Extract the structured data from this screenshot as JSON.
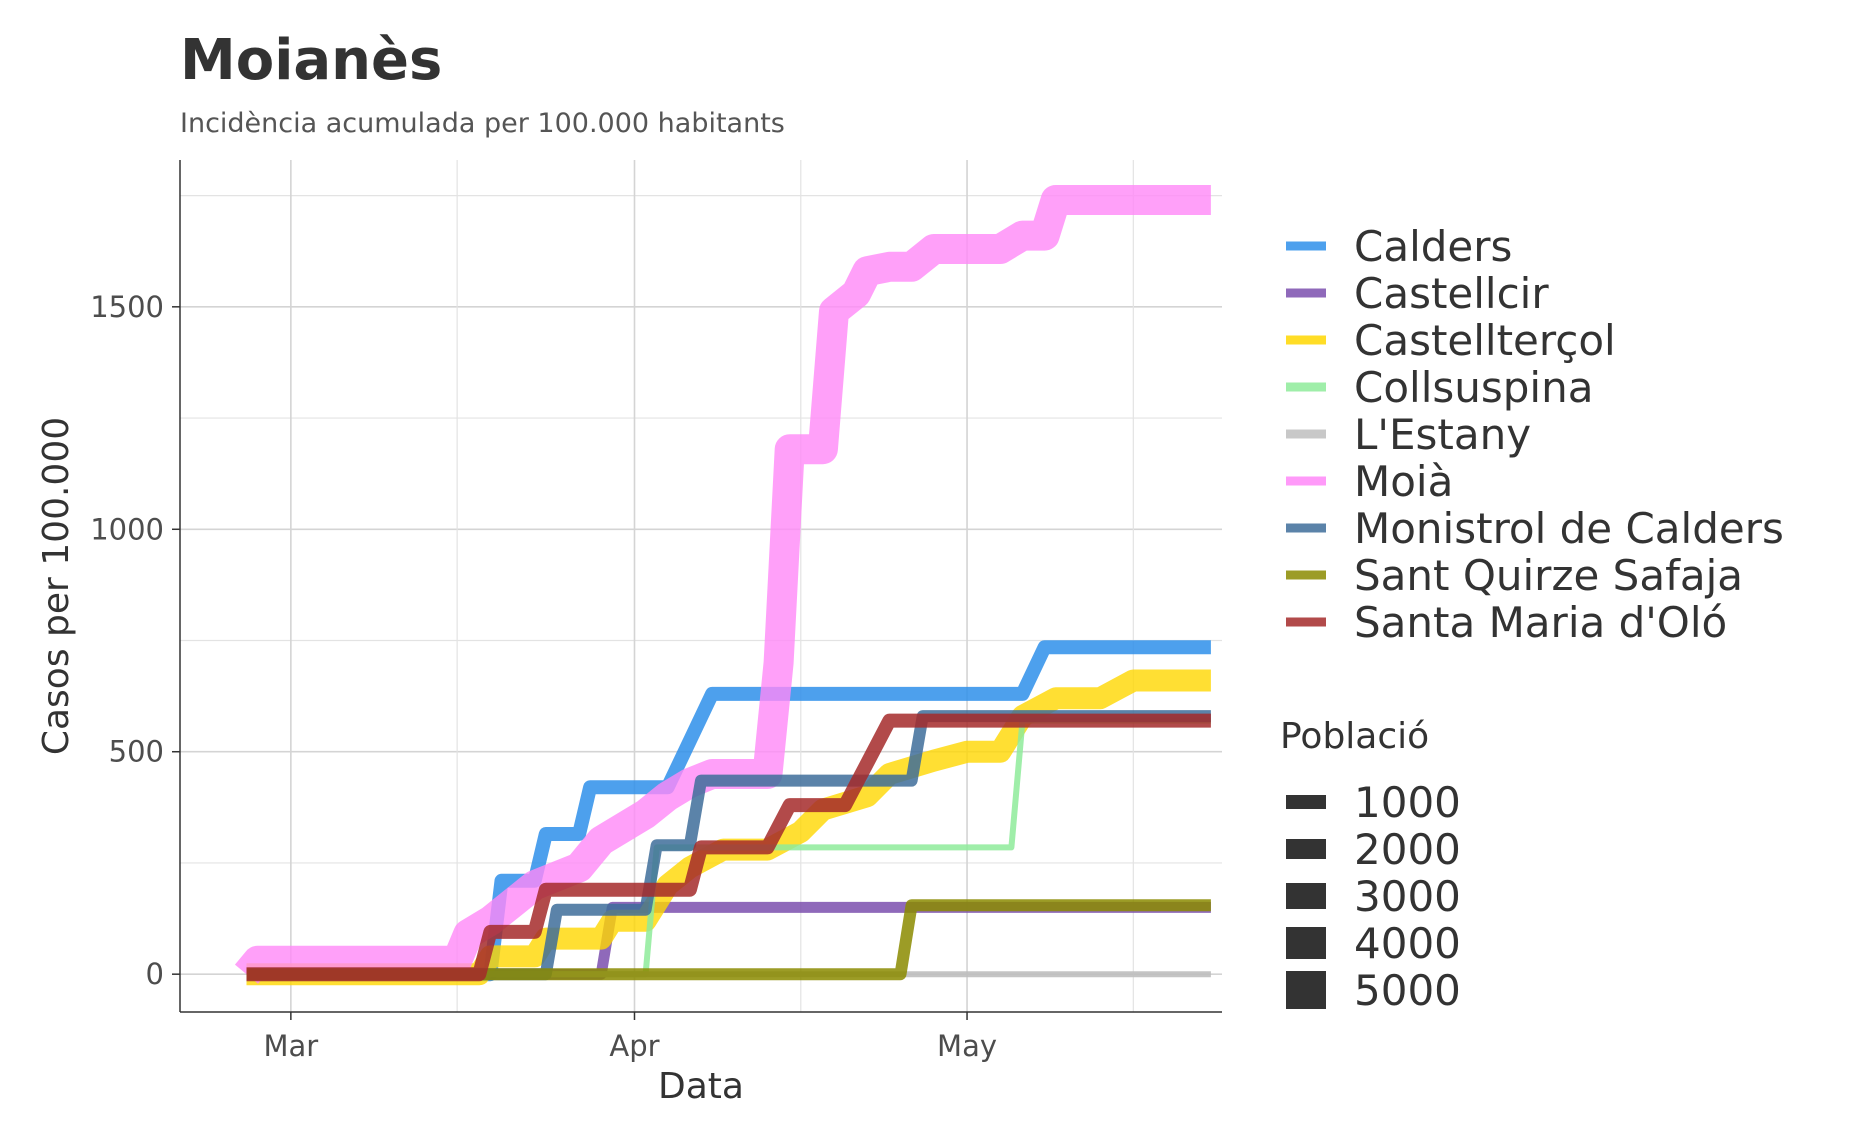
{
  "chart_data": {
    "type": "line",
    "title": "Moianès",
    "subtitle": "Incidència acumulada per 100.000 habitants",
    "xlabel": "Data",
    "ylabel": "Casos per 100.000",
    "x_ticks": [
      {
        "label": "Mar",
        "date": "2020-03-01"
      },
      {
        "label": "Apr",
        "date": "2020-04-01"
      },
      {
        "label": "May",
        "date": "2020-05-01"
      }
    ],
    "x_grid_dates": [
      "2020-03-16",
      "2020-04-16",
      "2020-05-16"
    ],
    "xlim": [
      "2020-02-20",
      "2020-05-24"
    ],
    "y_ticks": [
      0,
      500,
      1000,
      1500
    ],
    "y_grid_minor": [
      250,
      750,
      1250,
      1750
    ],
    "ylim": [
      -85,
      1830
    ],
    "grid": true,
    "legend_position": "right",
    "size_legend": {
      "title": "Població",
      "entries": [
        "1000",
        "2000",
        "3000",
        "4000",
        "5000"
      ]
    },
    "series": [
      {
        "name": "Calders",
        "color": "#2E8FEA",
        "population": 1000,
        "stroke_width": 14,
        "opacity": 0.85,
        "points": [
          [
            "2020-02-26",
            0
          ],
          [
            "2020-03-19",
            0
          ],
          [
            "2020-03-20",
            210
          ],
          [
            "2020-03-23",
            210
          ],
          [
            "2020-03-24",
            315
          ],
          [
            "2020-03-27",
            315
          ],
          [
            "2020-03-28",
            420
          ],
          [
            "2020-04-04",
            420
          ],
          [
            "2020-04-06",
            525
          ],
          [
            "2020-04-08",
            630
          ],
          [
            "2020-05-06",
            630
          ],
          [
            "2020-05-08",
            735
          ],
          [
            "2020-05-23",
            735
          ]
        ]
      },
      {
        "name": "Castellcir",
        "color": "#7B4FAE",
        "population": 700,
        "stroke_width": 11,
        "opacity": 0.85,
        "points": [
          [
            "2020-02-26",
            0
          ],
          [
            "2020-03-29",
            0
          ],
          [
            "2020-03-30",
            150
          ],
          [
            "2020-05-23",
            150
          ]
        ]
      },
      {
        "name": "Castellterçol",
        "color": "#FFD700",
        "population": 2400,
        "stroke_width": 22,
        "opacity": 0.8,
        "points": [
          [
            "2020-02-26",
            0
          ],
          [
            "2020-03-18",
            0
          ],
          [
            "2020-03-19",
            40
          ],
          [
            "2020-03-23",
            40
          ],
          [
            "2020-03-24",
            80
          ],
          [
            "2020-03-29",
            80
          ],
          [
            "2020-03-30",
            120
          ],
          [
            "2020-04-02",
            120
          ],
          [
            "2020-04-03",
            160
          ],
          [
            "2020-04-04",
            200
          ],
          [
            "2020-04-06",
            240
          ],
          [
            "2020-04-09",
            280
          ],
          [
            "2020-04-13",
            280
          ],
          [
            "2020-04-16",
            320
          ],
          [
            "2020-04-18",
            370
          ],
          [
            "2020-04-22",
            400
          ],
          [
            "2020-04-24",
            450
          ],
          [
            "2020-04-28",
            480
          ],
          [
            "2020-05-01",
            500
          ],
          [
            "2020-05-04",
            500
          ],
          [
            "2020-05-06",
            580
          ],
          [
            "2020-05-09",
            620
          ],
          [
            "2020-05-13",
            620
          ],
          [
            "2020-05-16",
            660
          ],
          [
            "2020-05-23",
            660
          ]
        ]
      },
      {
        "name": "Collsuspina",
        "color": "#8EEB9A",
        "population": 400,
        "stroke_width": 6,
        "opacity": 0.85,
        "points": [
          [
            "2020-02-26",
            0
          ],
          [
            "2020-04-02",
            0
          ],
          [
            "2020-04-03",
            285
          ],
          [
            "2020-05-05",
            285
          ],
          [
            "2020-05-06",
            570
          ],
          [
            "2020-05-23",
            570
          ]
        ]
      },
      {
        "name": "L'Estany",
        "color": "#BEBEBE",
        "population": 400,
        "stroke_width": 6,
        "opacity": 0.9,
        "points": [
          [
            "2020-02-26",
            0
          ],
          [
            "2020-05-23",
            0
          ]
        ]
      },
      {
        "name": "Moià",
        "color": "#FF88F8",
        "population": 6000,
        "stroke_width": 30,
        "opacity": 0.8,
        "points": [
          [
            "2020-02-26",
            0
          ],
          [
            "2020-02-27",
            30
          ],
          [
            "2020-03-16",
            30
          ],
          [
            "2020-03-17",
            90
          ],
          [
            "2020-03-19",
            120
          ],
          [
            "2020-03-21",
            160
          ],
          [
            "2020-03-23",
            200
          ],
          [
            "2020-03-27",
            240
          ],
          [
            "2020-03-29",
            300
          ],
          [
            "2020-03-31",
            330
          ],
          [
            "2020-04-02",
            360
          ],
          [
            "2020-04-04",
            400
          ],
          [
            "2020-04-06",
            430
          ],
          [
            "2020-04-08",
            450
          ],
          [
            "2020-04-13",
            450
          ],
          [
            "2020-04-14",
            700
          ],
          [
            "2020-04-15",
            1180
          ],
          [
            "2020-04-18",
            1180
          ],
          [
            "2020-04-19",
            1490
          ],
          [
            "2020-04-21",
            1530
          ],
          [
            "2020-04-22",
            1580
          ],
          [
            "2020-04-24",
            1590
          ],
          [
            "2020-04-26",
            1590
          ],
          [
            "2020-04-28",
            1630
          ],
          [
            "2020-05-04",
            1630
          ],
          [
            "2020-05-06",
            1660
          ],
          [
            "2020-05-08",
            1660
          ],
          [
            "2020-05-09",
            1740
          ],
          [
            "2020-05-23",
            1740
          ]
        ]
      },
      {
        "name": "Monistrol de Calders",
        "color": "#3E6D9A",
        "population": 700,
        "stroke_width": 12,
        "opacity": 0.85,
        "points": [
          [
            "2020-02-26",
            0
          ],
          [
            "2020-03-24",
            0
          ],
          [
            "2020-03-25",
            145
          ],
          [
            "2020-03-30",
            145
          ],
          [
            "2020-03-31",
            145
          ],
          [
            "2020-04-02",
            145
          ],
          [
            "2020-04-03",
            290
          ],
          [
            "2020-04-06",
            290
          ],
          [
            "2020-04-07",
            435
          ],
          [
            "2020-04-26",
            435
          ],
          [
            "2020-04-27",
            580
          ],
          [
            "2020-05-23",
            580
          ]
        ]
      },
      {
        "name": "Sant Quirze  Safaja",
        "color": "#8B8B00",
        "population": 650,
        "stroke_width": 12,
        "opacity": 0.85,
        "points": [
          [
            "2020-02-26",
            0
          ],
          [
            "2020-04-25",
            0
          ],
          [
            "2020-04-26",
            155
          ],
          [
            "2020-05-23",
            155
          ]
        ]
      },
      {
        "name": "Santa Maria d'Oló",
        "color": "#A52A2A",
        "population": 1050,
        "stroke_width": 14,
        "opacity": 0.85,
        "points": [
          [
            "2020-02-26",
            0
          ],
          [
            "2020-03-18",
            0
          ],
          [
            "2020-03-19",
            95
          ],
          [
            "2020-03-23",
            95
          ],
          [
            "2020-03-24",
            190
          ],
          [
            "2020-04-06",
            190
          ],
          [
            "2020-04-07",
            285
          ],
          [
            "2020-04-13",
            285
          ],
          [
            "2020-04-15",
            380
          ],
          [
            "2020-04-20",
            380
          ],
          [
            "2020-04-22",
            475
          ],
          [
            "2020-04-24",
            570
          ],
          [
            "2020-05-23",
            570
          ]
        ]
      }
    ]
  }
}
